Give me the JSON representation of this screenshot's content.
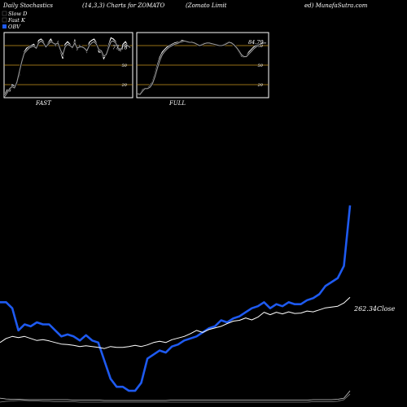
{
  "header": {
    "title_left": "Daily Stochastics",
    "title_mid": "(14,3,3) Charts for ZOMATO",
    "title_company": "(Zomato  Limit",
    "title_right": "ed) MunafaSutra.com"
  },
  "legend": [
    {
      "label": "Slow  D",
      "color": "#000000"
    },
    {
      "label": "Fast K",
      "color": "#000000"
    },
    {
      "label": "OBV",
      "color": "#1e5af0"
    }
  ],
  "colors": {
    "background": "#000000",
    "panel_border": "#ffffff",
    "level_line": "#c8961e",
    "stoch_line": "#ffffff",
    "stoch_line_dim": "#9a9a9a",
    "obv_line": "#1e5af0",
    "close_line": "#ffffff"
  },
  "chart_data": [
    {
      "type": "line",
      "title": "FAST",
      "ylim": [
        0,
        100
      ],
      "levels": [
        80,
        50,
        20
      ],
      "level_labels": [
        "80",
        "50",
        "20"
      ],
      "value_label": "77.18",
      "series": [
        {
          "values": [
            5,
            12,
            10,
            20,
            18,
            22,
            35,
            58,
            70,
            76,
            78,
            80,
            82,
            76,
            88,
            90,
            86,
            78,
            84,
            90,
            84,
            80,
            86,
            72,
            60,
            82,
            86,
            82,
            76,
            88,
            74,
            80,
            78,
            76,
            70,
            85,
            88,
            90,
            84,
            70,
            70,
            60,
            67,
            80,
            92,
            90,
            86,
            74,
            72,
            82,
            86,
            80,
            77
          ]
        },
        {
          "values": [
            2,
            8,
            14,
            17,
            15,
            24,
            40,
            55,
            68,
            72,
            76,
            78,
            79,
            76,
            84,
            87,
            84,
            78,
            82,
            86,
            84,
            82,
            84,
            74,
            66,
            78,
            82,
            80,
            77,
            84,
            76,
            78,
            78,
            76,
            72,
            80,
            84,
            86,
            82,
            74,
            72,
            64,
            66,
            76,
            86,
            87,
            84,
            76,
            74,
            79,
            82,
            80,
            77
          ]
        }
      ]
    },
    {
      "type": "line",
      "title": "FULL",
      "ylim": [
        0,
        100
      ],
      "levels": [
        80,
        50,
        20
      ],
      "level_labels": [
        "80",
        "50",
        "20"
      ],
      "value_label": "84.79",
      "series": [
        {
          "values": [
            5,
            6,
            12,
            15,
            15,
            18,
            24,
            36,
            50,
            62,
            70,
            74,
            78,
            80,
            82,
            84,
            85,
            86,
            88,
            88,
            86,
            85,
            86,
            84,
            82,
            80,
            82,
            84,
            84,
            84,
            82,
            82,
            81,
            80,
            80,
            82,
            84,
            86,
            84,
            80,
            76,
            70,
            64,
            62,
            64,
            70,
            74,
            78,
            80,
            82,
            84,
            84,
            85
          ]
        },
        {
          "values": [
            6,
            5,
            10,
            14,
            14,
            16,
            21,
            32,
            45,
            57,
            66,
            71,
            75,
            78,
            80,
            82,
            83,
            85,
            86,
            87,
            86,
            85,
            85,
            84,
            82,
            80,
            81,
            83,
            84,
            84,
            83,
            82,
            81,
            80,
            80,
            81,
            83,
            85,
            84,
            81,
            77,
            72,
            66,
            63,
            63,
            67,
            71,
            75,
            78,
            81,
            83,
            84,
            84
          ]
        }
      ]
    },
    {
      "type": "line",
      "title": "",
      "value_label": "262.34",
      "value_suffix": "Close",
      "series": [
        {
          "values": [
            250,
            250,
            235,
            180,
            195,
            190,
            200,
            195,
            195,
            180,
            165,
            170,
            165,
            155,
            168,
            155,
            150,
            105,
            60,
            40,
            40,
            30,
            30,
            50,
            110,
            120,
            130,
            125,
            140,
            145,
            155,
            160,
            165,
            175,
            185,
            190,
            205,
            200,
            210,
            215,
            225,
            235,
            240,
            250,
            235,
            245,
            240,
            250,
            245,
            245,
            255,
            260,
            270,
            290,
            300,
            310,
            340,
            490
          ]
        },
        {
          "values": [
            150,
            160,
            165,
            162,
            165,
            160,
            155,
            157,
            154,
            150,
            146,
            145,
            143,
            140,
            142,
            140,
            138,
            135,
            140,
            138,
            138,
            140,
            143,
            140,
            144,
            150,
            153,
            150,
            157,
            161,
            165,
            172,
            180,
            175,
            182,
            186,
            190,
            197,
            203,
            205,
            211,
            206,
            213,
            225,
            219,
            225,
            221,
            226,
            222,
            223,
            228,
            226,
            231,
            236,
            238,
            240,
            248,
            262
          ]
        },
        {
          "values": [
            12,
            10,
            9,
            9,
            8,
            8,
            8,
            8,
            8,
            8,
            8,
            8,
            7,
            7,
            7,
            7,
            7,
            6,
            6,
            6,
            6,
            6,
            6,
            6,
            6,
            6,
            6,
            6,
            7,
            7,
            7,
            7,
            7,
            7,
            7,
            7,
            7,
            7,
            7,
            7,
            7,
            7,
            7,
            7,
            7,
            7,
            7,
            7,
            7,
            7,
            7,
            8,
            8,
            8,
            8,
            9,
            12,
            30
          ]
        },
        {
          "values": [
            2,
            4,
            5,
            6,
            6,
            5,
            5,
            4,
            4,
            3,
            3,
            3,
            3,
            2,
            2,
            2,
            2,
            2,
            2,
            2,
            2,
            2,
            2,
            2,
            2,
            2,
            2,
            2,
            2,
            2,
            2,
            2,
            2,
            2,
            2,
            2,
            2,
            2,
            2,
            2,
            2,
            2,
            2,
            2,
            2,
            2,
            2,
            2,
            2,
            2,
            2,
            3,
            3,
            3,
            3,
            4,
            8,
            22
          ]
        }
      ]
    }
  ]
}
